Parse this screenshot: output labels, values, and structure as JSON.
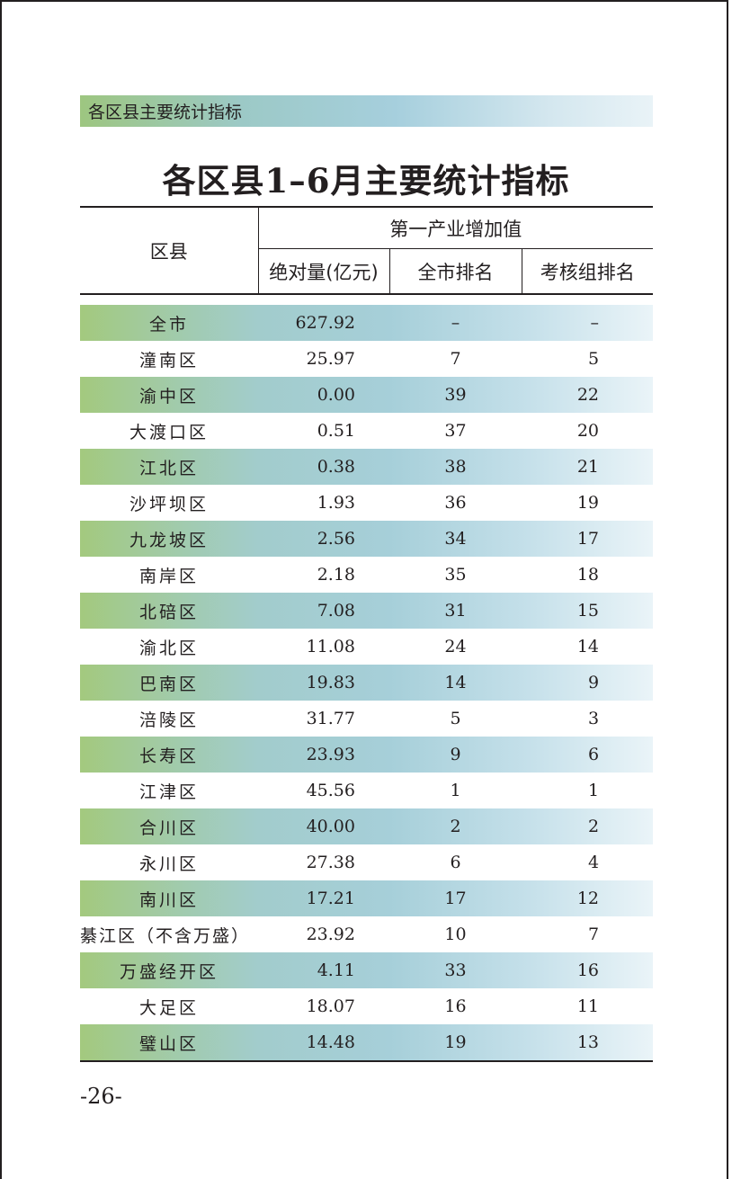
{
  "section_label": "各区县主要统计指标",
  "title": "各区县1–6月主要统计指标",
  "table": {
    "col_district": "区县",
    "group_header": "第一产业增加值",
    "sub_headers": [
      "绝对量(亿元)",
      "全市排名",
      "考核组排名"
    ],
    "rows": [
      {
        "name": "全市",
        "value": "627.92",
        "city_rank": "–",
        "group_rank": "–"
      },
      {
        "name": "潼南区",
        "value": "25.97",
        "city_rank": "7",
        "group_rank": "5"
      },
      {
        "name": "渝中区",
        "value": "0.00",
        "city_rank": "39",
        "group_rank": "22"
      },
      {
        "name": "大渡口区",
        "value": "0.51",
        "city_rank": "37",
        "group_rank": "20"
      },
      {
        "name": "江北区",
        "value": "0.38",
        "city_rank": "38",
        "group_rank": "21"
      },
      {
        "name": "沙坪坝区",
        "value": "1.93",
        "city_rank": "36",
        "group_rank": "19"
      },
      {
        "name": "九龙坡区",
        "value": "2.56",
        "city_rank": "34",
        "group_rank": "17"
      },
      {
        "name": "南岸区",
        "value": "2.18",
        "city_rank": "35",
        "group_rank": "18"
      },
      {
        "name": "北碚区",
        "value": "7.08",
        "city_rank": "31",
        "group_rank": "15"
      },
      {
        "name": "渝北区",
        "value": "11.08",
        "city_rank": "24",
        "group_rank": "14"
      },
      {
        "name": "巴南区",
        "value": "19.83",
        "city_rank": "14",
        "group_rank": "9"
      },
      {
        "name": "涪陵区",
        "value": "31.77",
        "city_rank": "5",
        "group_rank": "3"
      },
      {
        "name": "长寿区",
        "value": "23.93",
        "city_rank": "9",
        "group_rank": "6"
      },
      {
        "name": "江津区",
        "value": "45.56",
        "city_rank": "1",
        "group_rank": "1"
      },
      {
        "name": "合川区",
        "value": "40.00",
        "city_rank": "2",
        "group_rank": "2"
      },
      {
        "name": "永川区",
        "value": "27.38",
        "city_rank": "6",
        "group_rank": "4"
      },
      {
        "name": "南川区",
        "value": "17.21",
        "city_rank": "17",
        "group_rank": "12"
      },
      {
        "name": "綦江区（不含万盛）",
        "value": "23.92",
        "city_rank": "10",
        "group_rank": "7"
      },
      {
        "name": "万盛经开区",
        "value": "4.11",
        "city_rank": "33",
        "group_rank": "16"
      },
      {
        "name": "大足区",
        "value": "18.07",
        "city_rank": "16",
        "group_rank": "11"
      },
      {
        "name": "璧山区",
        "value": "14.48",
        "city_rank": "19",
        "group_rank": "13"
      }
    ]
  },
  "page_number": "-26-",
  "colors": {
    "band_start": "#9dc680",
    "band_mid": "#a6cfdd",
    "band_end": "#e9f3f7",
    "text": "#231f20"
  }
}
